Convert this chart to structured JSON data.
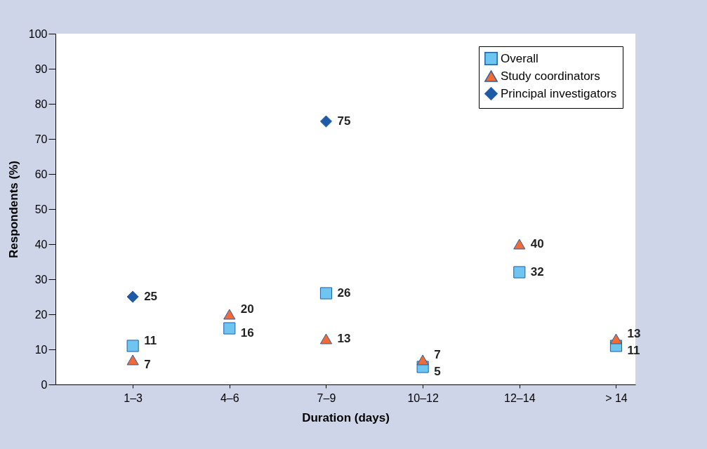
{
  "chart_data": {
    "type": "scatter",
    "xlabel": "Duration (days)",
    "ylabel": "Respondents (%)",
    "categories": [
      "1–3",
      "4–6",
      "7–9",
      "10–12",
      "12–14",
      "> 14"
    ],
    "series": [
      {
        "name": "Overall",
        "color": "#6ec6f0",
        "marker": "square",
        "values": [
          11,
          16,
          26,
          5,
          32,
          11
        ]
      },
      {
        "name": "Study coordinators",
        "color": "#f26b35",
        "marker": "triangle",
        "values": [
          7,
          20,
          13,
          7,
          40,
          13
        ]
      },
      {
        "name": "Principal investigators",
        "color": "#1f5aa6",
        "marker": "diamond",
        "values": [
          25,
          null,
          75,
          null,
          null,
          null
        ]
      }
    ],
    "ylim": [
      0,
      100
    ],
    "yticks": [
      0,
      10,
      20,
      30,
      40,
      50,
      60,
      70,
      80,
      90,
      100
    ],
    "grid": false,
    "legend": "top right",
    "data_labels": true
  }
}
